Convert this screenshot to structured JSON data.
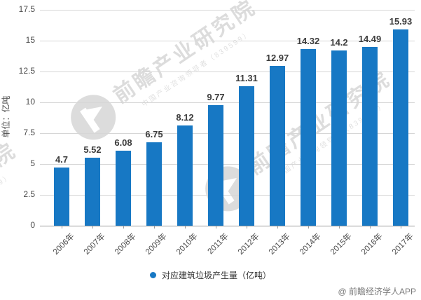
{
  "chart_data": {
    "type": "bar",
    "categories": [
      "2006年",
      "2007年",
      "2008年",
      "2009年",
      "2010年",
      "2011年",
      "2012年",
      "2013年",
      "2014年",
      "2015年",
      "2016年",
      "2017年"
    ],
    "values": [
      4.7,
      5.52,
      6.08,
      6.75,
      8.12,
      9.77,
      11.31,
      12.97,
      14.32,
      14.2,
      14.49,
      15.93
    ],
    "value_labels": [
      "4.7",
      "5.52",
      "6.08",
      "6.75",
      "8.12",
      "9.77",
      "11.31",
      "12.97",
      "14.32",
      "14.2",
      "14.49",
      "15.93"
    ],
    "series_name": "对应建筑垃圾产生量（亿吨）",
    "title": "",
    "xlabel": "",
    "ylabel": "单位：亿吨",
    "ylim": [
      0,
      17.5
    ],
    "yticks": [
      "0",
      "2.5",
      "5",
      "7.5",
      "10",
      "12.5",
      "15",
      "17.5"
    ],
    "grid": true,
    "legend_position": "bottom"
  },
  "colors": {
    "bar": "#1778c4",
    "gridline": "#d6d6d6",
    "axis_line": "#9b9b9b"
  },
  "legend": {
    "label": "对应建筑垃圾产生量（亿吨）"
  },
  "y_axis": {
    "unit_label": "单位：亿吨"
  },
  "watermark": {
    "big_text": "前瞻产业研究院",
    "small_text": "中国产业咨询领导者（839599）"
  },
  "credit": "@ 前瞻经济学人APP"
}
